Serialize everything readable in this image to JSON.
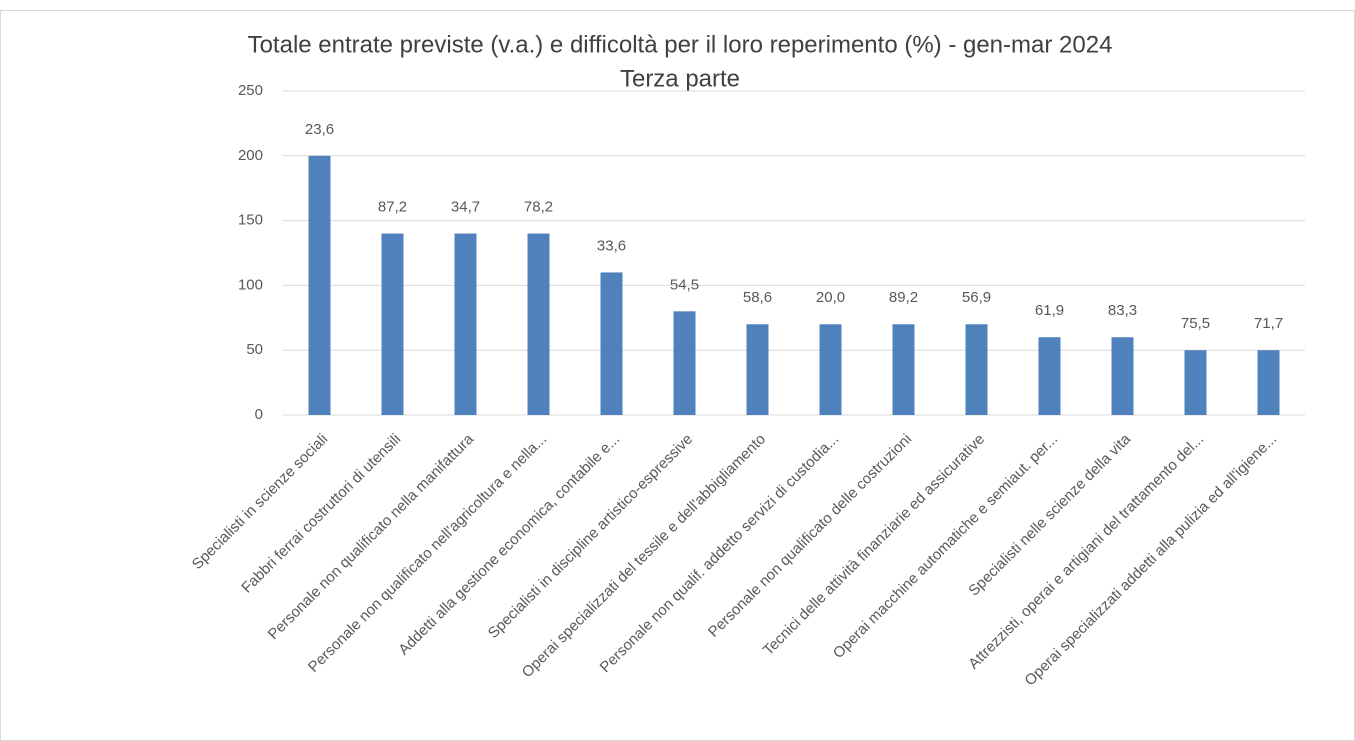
{
  "chart_data": {
    "type": "bar",
    "title": "Totale entrate previste (v.a.) e difficoltà per il loro reperimento (%) - gen-mar 2024",
    "subtitle": "Terza parte",
    "categories": [
      "Specialisti in scienze sociali",
      "Fabbri ferrai costruttori di utensili",
      "Personale non qualificato nella manifattura",
      "Personale non qualificato nell'agricoltura e nella...",
      "Addetti alla gestione economica, contabile e...",
      "Specialisti in discipline artistico-espressive",
      "Operai specializzati del tessile e dell'abbigliamento",
      "Personale non qualif. addetto servizi di custodia...",
      "Personale non qualificato delle costruzioni",
      "Tecnici delle attività finanziarie ed assicurative",
      "Operai macchine automatiche e semiaut. per...",
      "Specialisti nelle scienze della vita",
      "Attrezzisti, operai e artigiani del trattamento del...",
      "Operai specializzati addetti alla pulizia ed all'igiene..."
    ],
    "values": [
      200,
      140,
      140,
      140,
      110,
      80,
      70,
      70,
      70,
      70,
      60,
      60,
      50,
      50
    ],
    "difficulty_labels": [
      "23,6",
      "87,2",
      "34,7",
      "78,2",
      "33,6",
      "54,5",
      "58,6",
      "20,0",
      "89,2",
      "56,9",
      "61,9",
      "83,3",
      "75,5",
      "71,7"
    ],
    "color": "#4f81bd",
    "ylim": [
      0,
      250
    ],
    "yticks": [
      0,
      50,
      100,
      150,
      200,
      250
    ],
    "grid": true
  }
}
